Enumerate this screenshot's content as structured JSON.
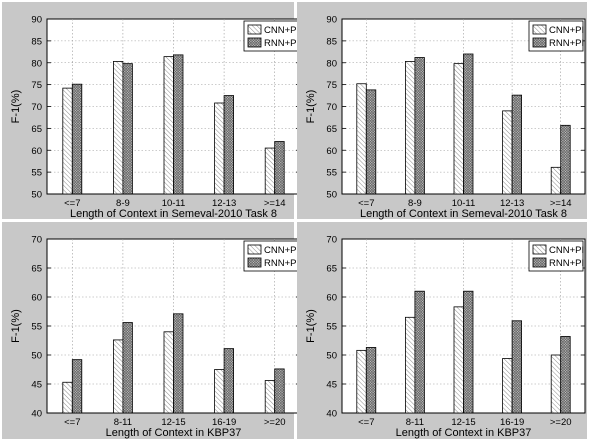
{
  "chart_data": [
    {
      "type": "bar",
      "categories": [
        "<=7",
        "8-9",
        "10-11",
        "12-13",
        ">=14"
      ],
      "series": [
        {
          "name": "CNN+PF",
          "values": [
            74.2,
            80.3,
            81.4,
            70.8,
            60.5
          ],
          "pattern": "diagonal-light"
        },
        {
          "name": "RNN+PF",
          "values": [
            75.1,
            79.8,
            81.8,
            72.5,
            62.0
          ],
          "pattern": "crosshatch-dark"
        }
      ],
      "xlabel": "Length of Context in Semeval-2010 Task 8",
      "ylabel": "F-1(%)",
      "ylim": [
        50,
        90
      ],
      "yticks": [
        "50",
        "55",
        "60",
        "65",
        "70",
        "75",
        "80",
        "85",
        "90"
      ],
      "grid": true,
      "legend_position": "top-right"
    },
    {
      "type": "bar",
      "categories": [
        "<=7",
        "8-9",
        "10-11",
        "12-13",
        ">=14"
      ],
      "series": [
        {
          "name": "CNN+PI",
          "values": [
            75.2,
            80.3,
            79.8,
            69.0,
            56.1
          ],
          "pattern": "diagonal-light"
        },
        {
          "name": "RNN+PI",
          "values": [
            73.8,
            81.2,
            82.0,
            72.6,
            65.7
          ],
          "pattern": "crosshatch-dark"
        }
      ],
      "xlabel": "Length of Context in Semeval-2010 Task 8",
      "ylabel": "F-1(%)",
      "ylim": [
        50,
        90
      ],
      "yticks": [
        "50",
        "55",
        "60",
        "65",
        "70",
        "75",
        "80",
        "85",
        "90"
      ],
      "grid": true,
      "legend_position": "top-right"
    },
    {
      "type": "bar",
      "categories": [
        "<=7",
        "8-11",
        "12-15",
        "16-19",
        ">=20"
      ],
      "series": [
        {
          "name": "CNN+PF",
          "values": [
            45.3,
            52.6,
            54.0,
            47.5,
            45.6
          ],
          "pattern": "diagonal-light"
        },
        {
          "name": "RNN+PF",
          "values": [
            49.2,
            55.6,
            57.1,
            51.1,
            47.6
          ],
          "pattern": "crosshatch-dark"
        }
      ],
      "xlabel": "Length of Context in KBP37",
      "ylabel": "F-1(%)",
      "ylim": [
        40,
        70
      ],
      "yticks": [
        "40",
        "45",
        "50",
        "55",
        "60",
        "65",
        "70"
      ],
      "grid": true,
      "legend_position": "top-right"
    },
    {
      "type": "bar",
      "categories": [
        "<=7",
        "8-11",
        "12-15",
        "16-19",
        ">=20"
      ],
      "series": [
        {
          "name": "CNN+PI",
          "values": [
            50.8,
            56.5,
            58.3,
            49.4,
            50.0
          ],
          "pattern": "diagonal-light"
        },
        {
          "name": "RNN+PI",
          "values": [
            51.3,
            61.0,
            61.0,
            55.9,
            53.2
          ],
          "pattern": "crosshatch-dark"
        }
      ],
      "xlabel": "Length of Context in KBP37",
      "ylabel": "F-1(%)",
      "ylim": [
        40,
        70
      ],
      "yticks": [
        "40",
        "45",
        "50",
        "55",
        "60",
        "65",
        "70"
      ],
      "grid": true,
      "legend_position": "top-right"
    }
  ]
}
